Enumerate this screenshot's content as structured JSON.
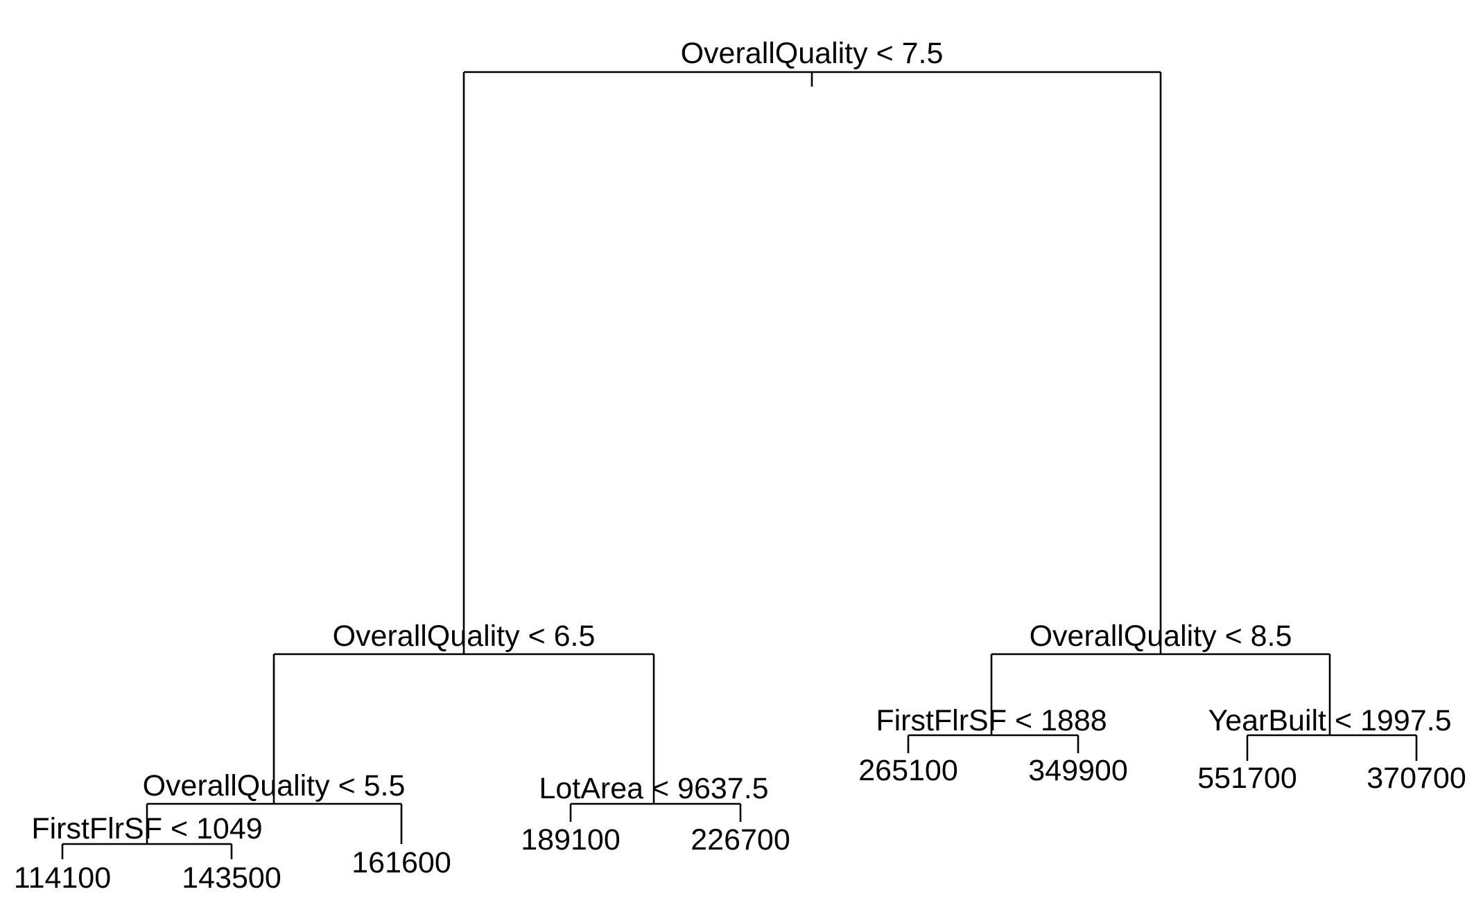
{
  "colors": {
    "background": "#ffffff",
    "ink": "#000000"
  },
  "tree": {
    "root_split": "OverallQuality < 7.5",
    "left_split": "OverallQuality < 6.5",
    "right_split": "OverallQuality < 8.5",
    "ll_split": "OverallQuality < 5.5",
    "lll_split": "FirstFlrSF < 1049",
    "lr_split": "LotArea < 9637.5",
    "rl_split": "FirstFlrSF < 1888",
    "rr_split": "YearBuilt < 1997.5",
    "leaves": {
      "llll": "114100",
      "lllr": "143500",
      "llr": "161600",
      "lrl": "189100",
      "lrr": "226700",
      "rll": "265100",
      "rlr": "349900",
      "rrl": "551700",
      "rrr": "370700"
    }
  }
}
